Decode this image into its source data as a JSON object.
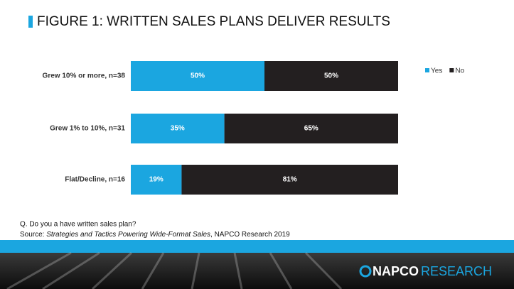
{
  "chart_data": {
    "type": "stacked_bar_horizontal",
    "title": "FIGURE 1: WRITTEN SALES PLANS DELIVER RESULTS",
    "categories": [
      "Grew 10% or more, n=38",
      "Grew 1% to 10%, n=31",
      "Flat/Decline, n=16"
    ],
    "series": [
      {
        "name": "Yes",
        "color": "#1ba6e0",
        "values": [
          50,
          35,
          19
        ],
        "value_labels": [
          "50%",
          "35%",
          "19%"
        ]
      },
      {
        "name": "No",
        "color": "#231f20",
        "values": [
          50,
          65,
          81
        ],
        "value_labels": [
          "50%",
          "65%",
          "81%"
        ]
      }
    ],
    "legend": "top-right",
    "note": "Q. Do you a have written sales plan?",
    "source": {
      "prefix": "Source: ",
      "title": "Strategies and Tactics Powering Wide-Format Sales",
      "suffix": ", NAPCO Research 2019"
    }
  },
  "logo": {
    "brand": "NAPCO",
    "division": "RESEARCH"
  }
}
